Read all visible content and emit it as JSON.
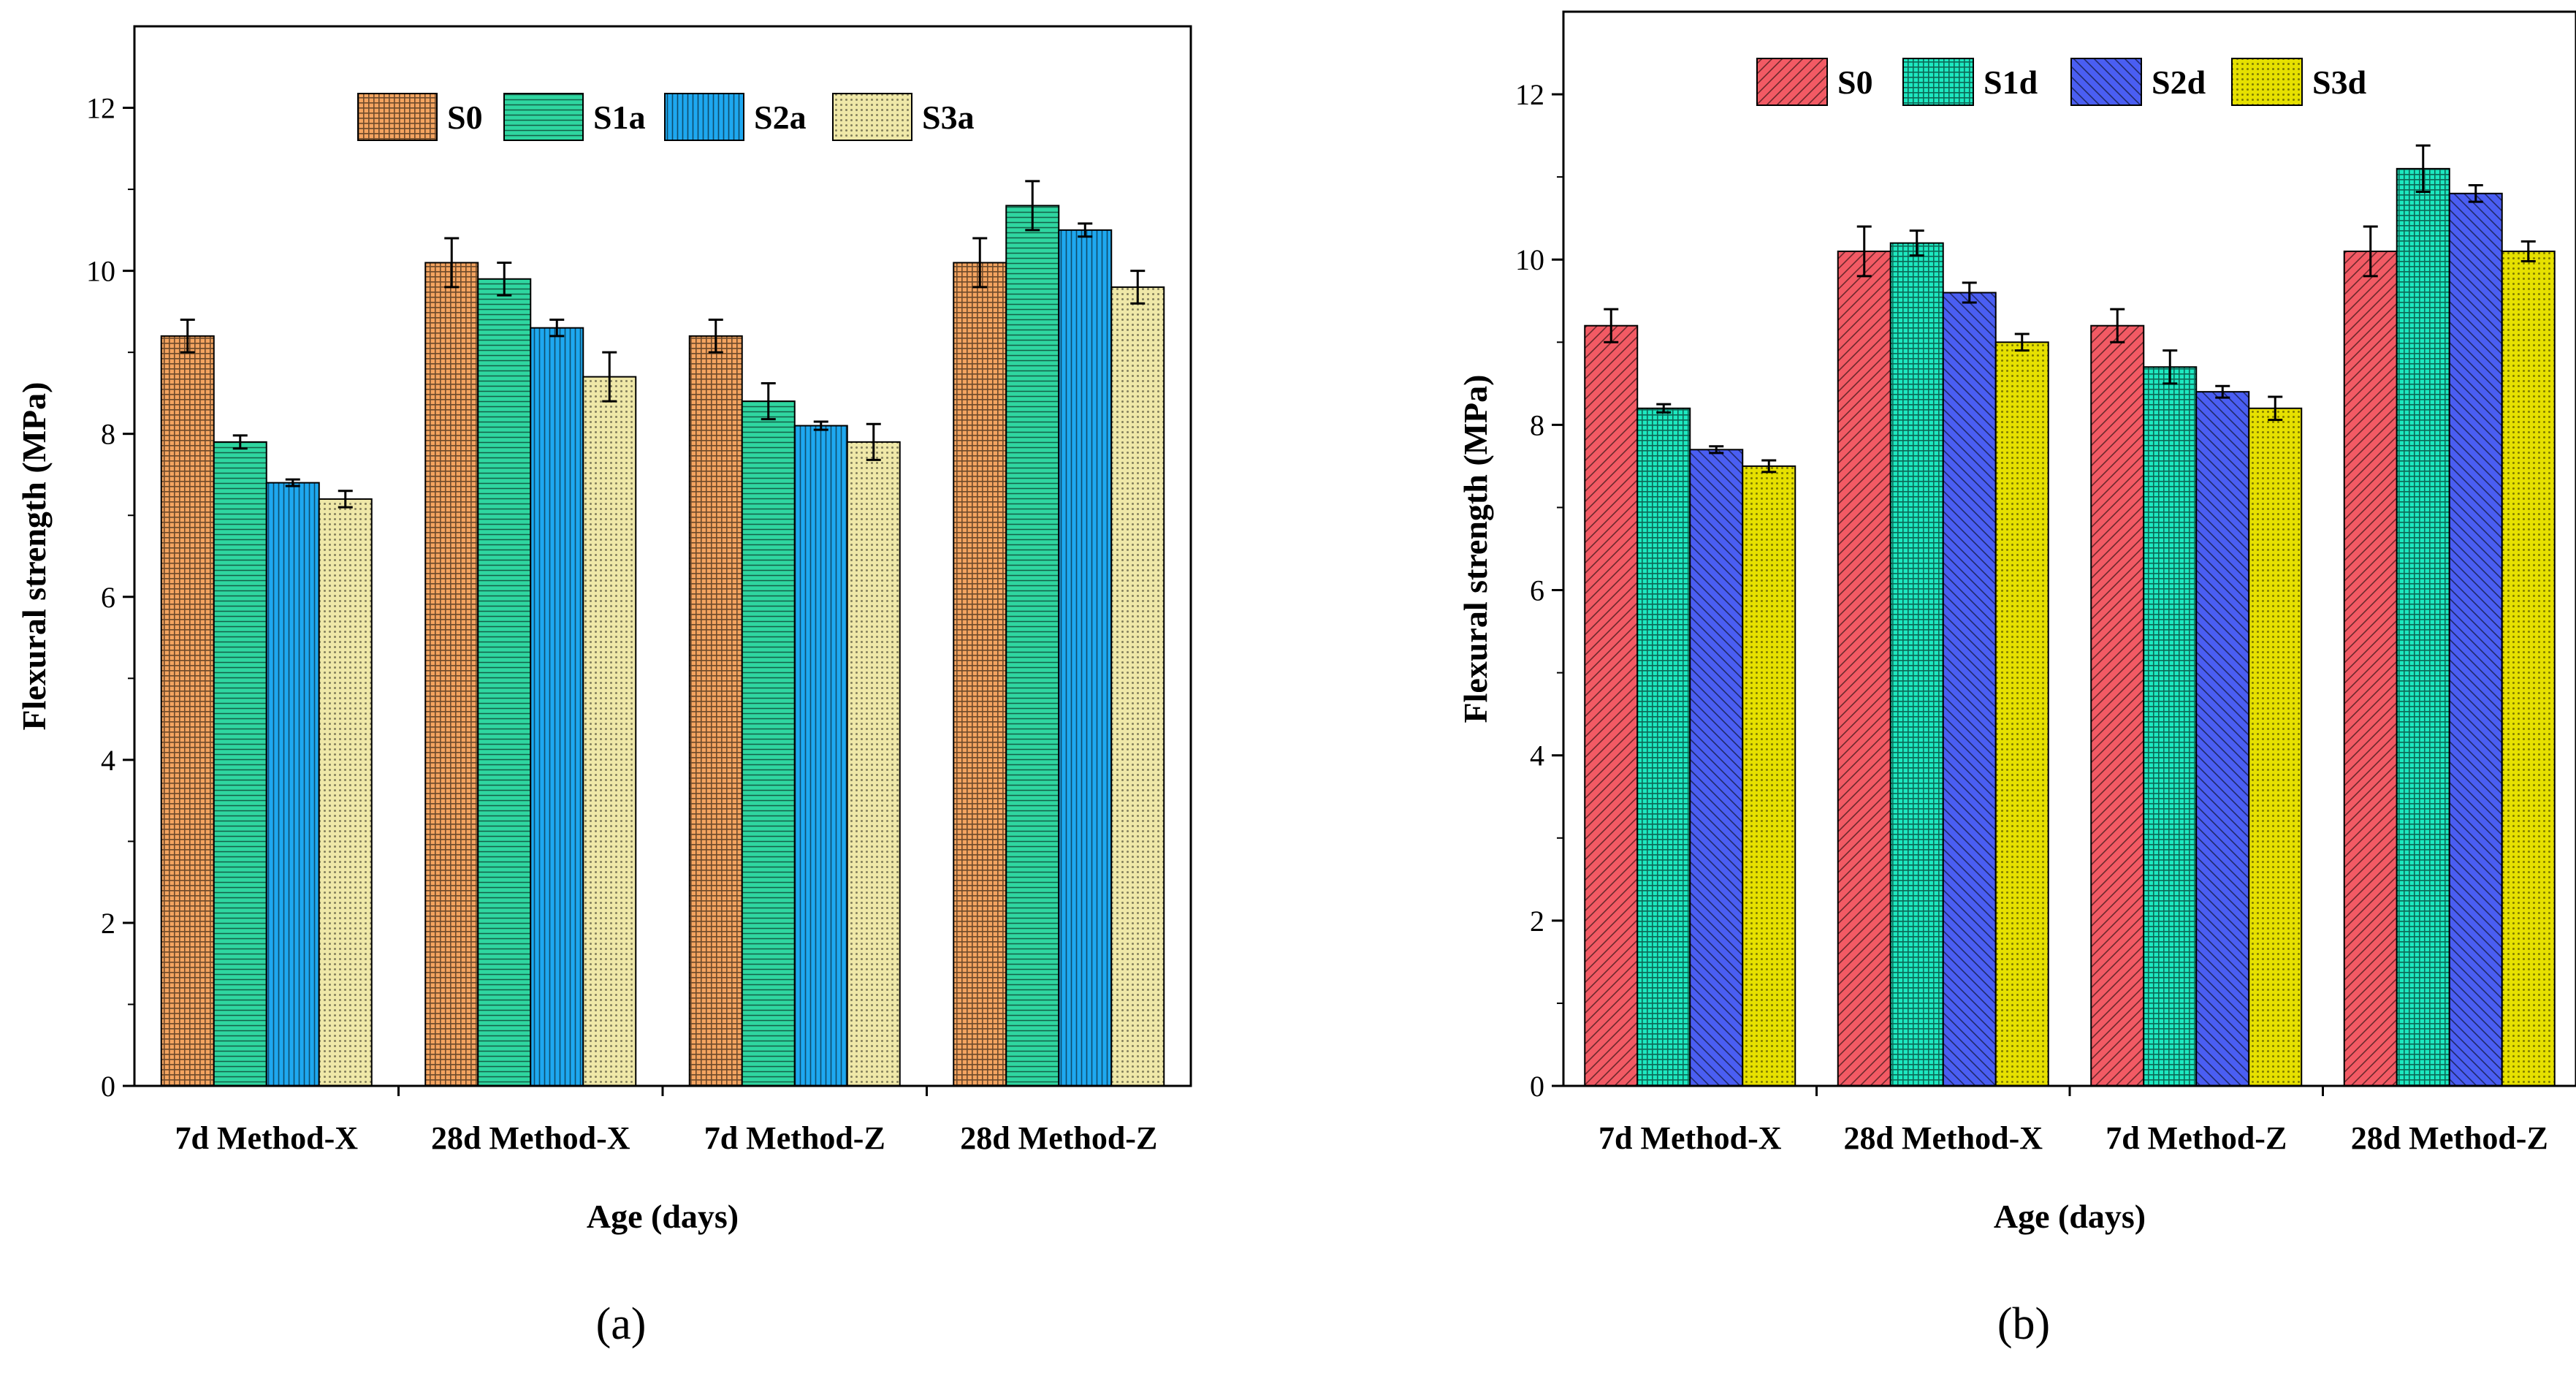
{
  "chart_data": [
    {
      "type": "bar",
      "panel_label": "(a)",
      "categories": [
        "7d Method-X",
        "28d Method-X",
        "7d Method-Z",
        "28d Method-Z"
      ],
      "series": [
        {
          "name": "S0",
          "color": "#f4a460",
          "pattern": "grid",
          "values": [
            9.2,
            10.1,
            9.2,
            10.1
          ],
          "errors": [
            0.2,
            0.3,
            0.2,
            0.3
          ]
        },
        {
          "name": "S1a",
          "color": "#2fd6a0",
          "pattern": "hlines",
          "values": [
            7.9,
            9.9,
            8.4,
            10.8
          ],
          "errors": [
            0.08,
            0.2,
            0.22,
            0.3
          ]
        },
        {
          "name": "S2a",
          "color": "#1ea8f0",
          "pattern": "vlines",
          "values": [
            7.4,
            9.3,
            8.1,
            10.5
          ],
          "errors": [
            0.04,
            0.1,
            0.05,
            0.08
          ]
        },
        {
          "name": "S3a",
          "color": "#efe8a8",
          "pattern": "dots",
          "values": [
            7.2,
            8.7,
            7.9,
            9.8
          ],
          "errors": [
            0.1,
            0.3,
            0.22,
            0.2
          ]
        }
      ],
      "xlabel": "Age (days)",
      "ylabel": "Flexural strength (MPa)",
      "ylim": [
        0,
        13
      ],
      "yticks": [
        0,
        2,
        4,
        6,
        8,
        10,
        12
      ],
      "legend_position": "top"
    },
    {
      "type": "bar",
      "panel_label": "(b)",
      "categories": [
        "7d Method-X",
        "28d Method-X",
        "7d Method-Z",
        "28d Method-Z"
      ],
      "series": [
        {
          "name": "S0",
          "color": "#f25a64",
          "pattern": "diag-up",
          "values": [
            9.2,
            10.1,
            9.2,
            10.1
          ],
          "errors": [
            0.2,
            0.3,
            0.2,
            0.3
          ]
        },
        {
          "name": "S1d",
          "color": "#1de8c0",
          "pattern": "grid",
          "values": [
            8.2,
            10.2,
            8.7,
            11.1
          ],
          "errors": [
            0.05,
            0.15,
            0.2,
            0.28
          ]
        },
        {
          "name": "S2d",
          "color": "#4a5ef2",
          "pattern": "diag-down",
          "values": [
            7.7,
            9.6,
            8.4,
            10.8
          ],
          "errors": [
            0.04,
            0.12,
            0.07,
            0.1
          ]
        },
        {
          "name": "S3d",
          "color": "#e6e000",
          "pattern": "dots",
          "values": [
            7.5,
            9.0,
            8.2,
            10.1
          ],
          "errors": [
            0.07,
            0.1,
            0.14,
            0.12
          ]
        }
      ],
      "xlabel": "Age (days)",
      "ylabel": "Flexural strength (MPa)",
      "ylim": [
        0,
        13
      ],
      "yticks": [
        0,
        2,
        4,
        6,
        8,
        10,
        12
      ],
      "legend_position": "top"
    }
  ]
}
